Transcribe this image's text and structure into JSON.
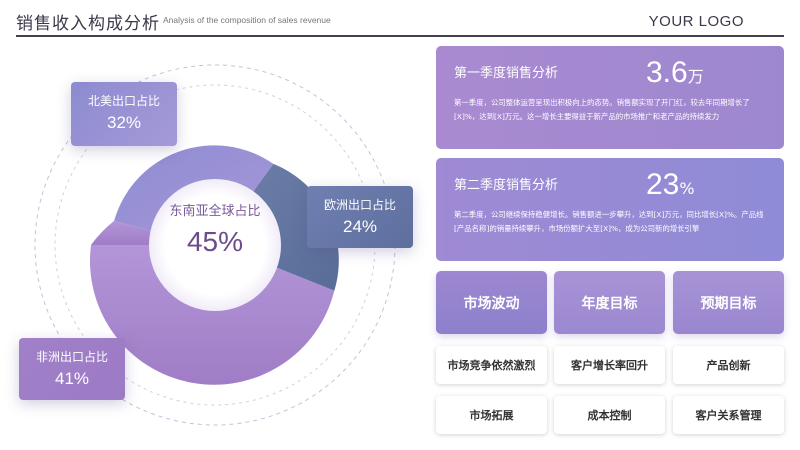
{
  "header": {
    "title": "销售收入构成分析",
    "subtitle": "Analysis of the composition of sales revenue",
    "logo": "YOUR LOGO"
  },
  "center": {
    "label": "东南亚全球占比",
    "value": "45%"
  },
  "callouts": {
    "north_america": {
      "label": "北美出口占比",
      "value": "32%"
    },
    "europe": {
      "label": "欧洲出口占比",
      "value": "24%"
    },
    "africa": {
      "label": "非洲出口占比",
      "value": "41%"
    }
  },
  "colors": {
    "purple_light": "#a88ad0",
    "purple_blue": "#8c8bd0",
    "slate_blue": "#5e6f9e",
    "title_text": "#6c4b8c"
  },
  "q1": {
    "title": "第一季度销售分析",
    "value": "3.6",
    "unit": "万",
    "text": "第一季度，公司整体运营呈现出积极向上的态势。销售额实现了开门红，较去年同期增长了[X]%，达到[X]万元。这一增长主要得益于新产品的市场推广和老产品的持续发力"
  },
  "q2": {
    "title": "第二季度销售分析",
    "value": "23",
    "unit": "%",
    "text": "第二季度，公司继续保持稳健增长。销售额进一步攀升，达到[X]万元，同比增长[X]%。产品线[产品名称]的销量持续攀升，市场份额扩大至[X]%，成为公司新的增长引擎"
  },
  "tiles": [
    "市场波动",
    "年度目标",
    "预期目标"
  ],
  "items": [
    [
      "市场竞争依然激烈",
      "客户增长率回升",
      "产品创新"
    ],
    [
      "市场拓展",
      "成本控制",
      "客户关系管理"
    ]
  ]
}
